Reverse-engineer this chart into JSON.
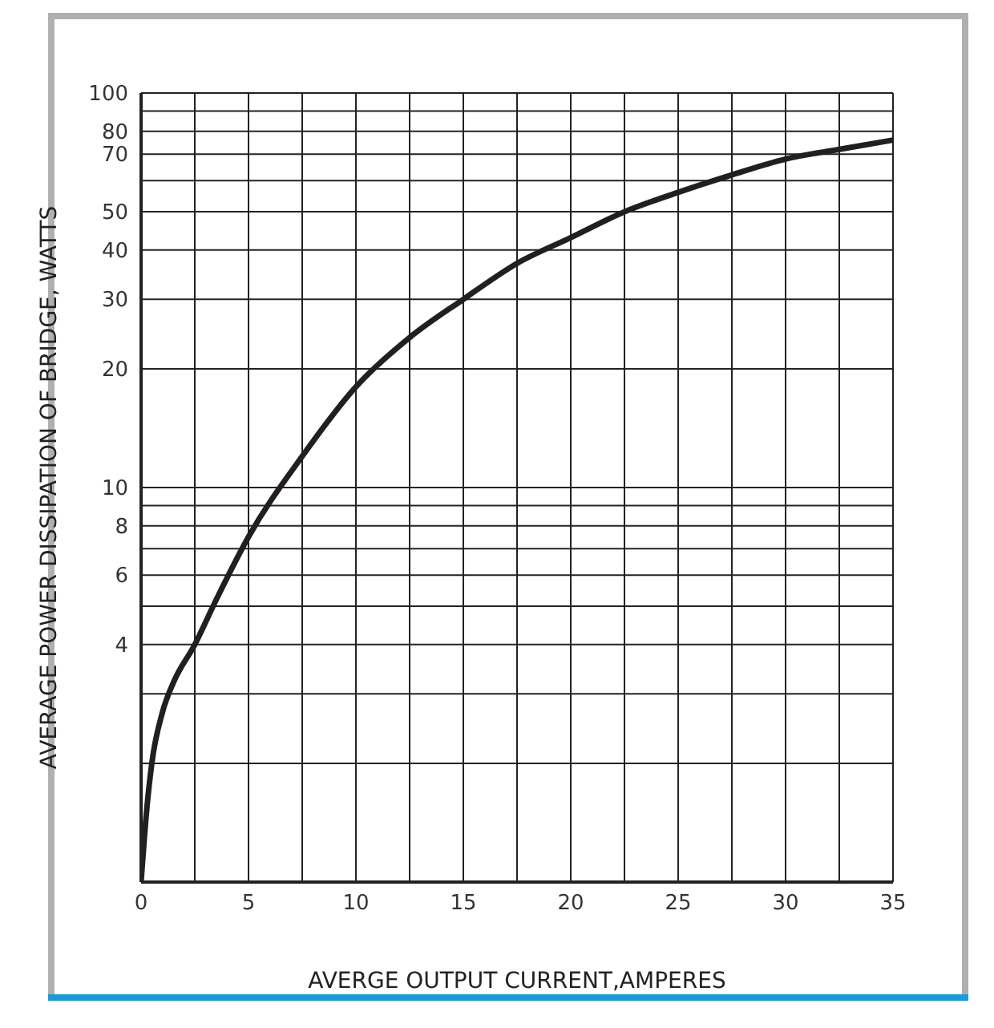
{
  "chart_data": {
    "type": "line",
    "xlabel": "AVERGE OUTPUT CURRENT,AMPERES",
    "ylabel": "AVERAGE POWER DISSIPATION OF BRIDGE, WATTS",
    "x": [
      0,
      0.25,
      0.5,
      1,
      1.5,
      2.5,
      3.5,
      5,
      7.5,
      10,
      12.5,
      15,
      17.5,
      20,
      22.5,
      25,
      27.5,
      30,
      32.5,
      35
    ],
    "series": [
      {
        "color": "#231f20",
        "values": [
          1,
          1.5,
          2,
          2.7,
          3.2,
          4,
          5.2,
          7.5,
          12,
          18,
          24,
          30,
          37,
          43,
          50,
          56,
          62,
          68,
          72,
          76
        ]
      }
    ],
    "log": "y",
    "xlim": [
      0,
      35
    ],
    "xticks": [
      0,
      5,
      10,
      15,
      20,
      25,
      30,
      35
    ],
    "ylim": [
      1,
      100
    ],
    "yticks": [
      {
        "value": 1,
        "label": null
      },
      {
        "value": 2,
        "label": null
      },
      {
        "value": 3,
        "label": null
      },
      4,
      {
        "value": 5,
        "label": null
      },
      6,
      {
        "value": 7,
        "label": null
      },
      8,
      {
        "value": 9,
        "label": null
      },
      10,
      20,
      30,
      40,
      50,
      {
        "value": 60,
        "label": null
      },
      70,
      80,
      {
        "value": 90,
        "label": null
      },
      100
    ],
    "grid": true,
    "marker": "none",
    "line_style": "solid",
    "legend": false
  }
}
